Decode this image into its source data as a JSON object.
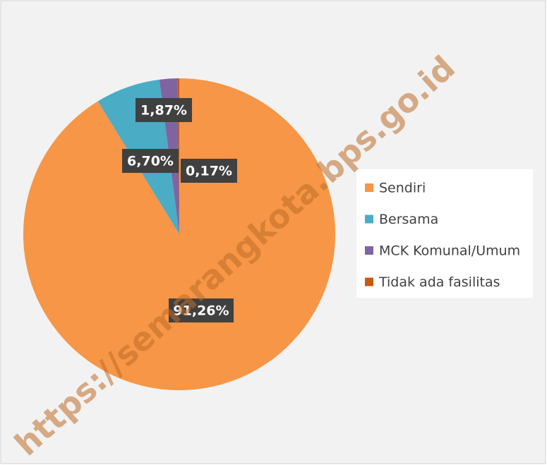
{
  "chart_data": {
    "type": "pie",
    "categories": [
      "Sendiri",
      "Bersama",
      "MCK Komunal/Umum",
      "Tidak ada fasilitas"
    ],
    "values": [
      91.26,
      6.7,
      1.87,
      0.17
    ],
    "value_labels": [
      "91,26%",
      "6,70%",
      "1,87%",
      "0,17%"
    ],
    "colors": [
      "#f79646",
      "#4bacc6",
      "#8064a2",
      "#c55a11"
    ],
    "legend": "right",
    "watermark": "https://semarangkota.bps.go.id"
  }
}
